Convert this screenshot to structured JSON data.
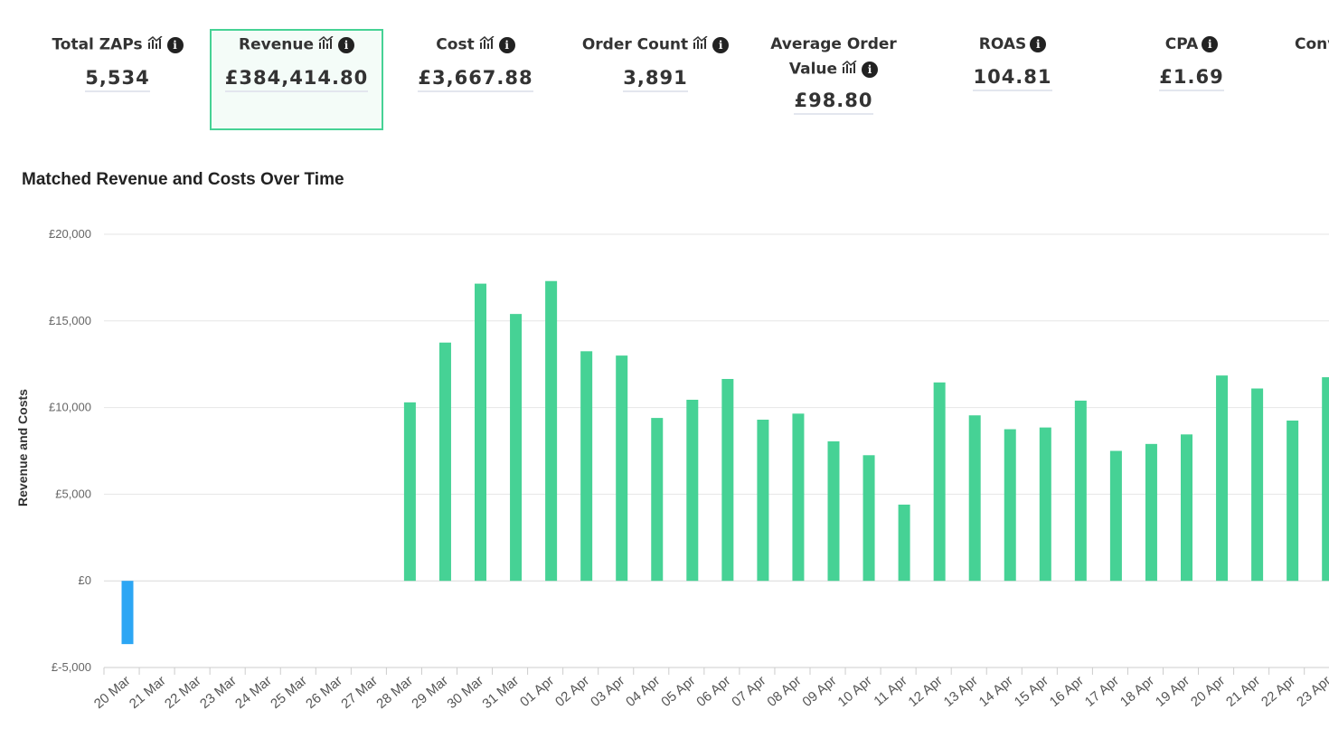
{
  "metrics": [
    {
      "label": "Total ZAPs",
      "value": "5,534",
      "trend_icon": true,
      "info_icon": true
    },
    {
      "label": "Revenue",
      "value": "£384,414.80",
      "trend_icon": true,
      "info_icon": true,
      "selected": true
    },
    {
      "label": "Cost",
      "value": "£3,667.88",
      "trend_icon": true,
      "info_icon": true
    },
    {
      "label": "Order Count",
      "value": "3,891",
      "trend_icon": true,
      "info_icon": true
    },
    {
      "label": "Average Order",
      "label_line2": "Value",
      "value": "£98.80",
      "trend_icon": true,
      "info_icon": true
    },
    {
      "label": "ROAS",
      "value": "104.81",
      "trend_icon": false,
      "info_icon": true
    },
    {
      "label": "CPA",
      "value": "£1.69",
      "trend_icon": false,
      "info_icon": true
    },
    {
      "label": "Conv",
      "value": "",
      "trend_icon": false,
      "info_icon": false
    }
  ],
  "icons": {
    "trend": "chart-trend-icon",
    "info": "info-icon"
  },
  "chart_data": {
    "type": "bar",
    "title": "Matched Revenue and Costs Over Time",
    "ylabel": "Revenue and Costs",
    "xlabel": "",
    "ylim": [
      -5000,
      20000
    ],
    "yticks": [
      -5000,
      0,
      5000,
      10000,
      15000,
      20000
    ],
    "ytick_labels": [
      "£-5,000",
      "£0",
      "£5,000",
      "£10,000",
      "£15,000",
      "£20,000"
    ],
    "grid": true,
    "categories": [
      "20 Mar",
      "21 Mar",
      "22 Mar",
      "23 Mar",
      "24 Mar",
      "25 Mar",
      "26 Mar",
      "27 Mar",
      "28 Mar",
      "29 Mar",
      "30 Mar",
      "31 Mar",
      "01 Apr",
      "02 Apr",
      "03 Apr",
      "04 Apr",
      "05 Apr",
      "06 Apr",
      "07 Apr",
      "08 Apr",
      "09 Apr",
      "10 Apr",
      "11 Apr",
      "12 Apr",
      "13 Apr",
      "14 Apr",
      "15 Apr",
      "16 Apr",
      "17 Apr",
      "18 Apr",
      "19 Apr",
      "20 Apr",
      "21 Apr",
      "22 Apr",
      "23 Apr"
    ],
    "series": [
      {
        "color": "#46d295",
        "values": [
          0,
          0,
          0,
          0,
          0,
          0,
          0,
          0,
          10300,
          13750,
          17150,
          15400,
          17300,
          13250,
          13000,
          9400,
          10450,
          11650,
          9300,
          9650,
          8050,
          7250,
          4400,
          11450,
          9550,
          8750,
          8850,
          10400,
          7500,
          7900,
          8450,
          11850,
          11100,
          9250,
          11750
        ]
      },
      {
        "color": "#2ca6f4",
        "values": [
          -3650,
          0,
          0,
          0,
          0,
          0,
          0,
          0,
          0,
          0,
          0,
          0,
          0,
          0,
          0,
          0,
          0,
          0,
          0,
          0,
          0,
          0,
          0,
          0,
          0,
          0,
          0,
          0,
          0,
          0,
          0,
          0,
          0,
          0,
          0
        ]
      }
    ]
  }
}
